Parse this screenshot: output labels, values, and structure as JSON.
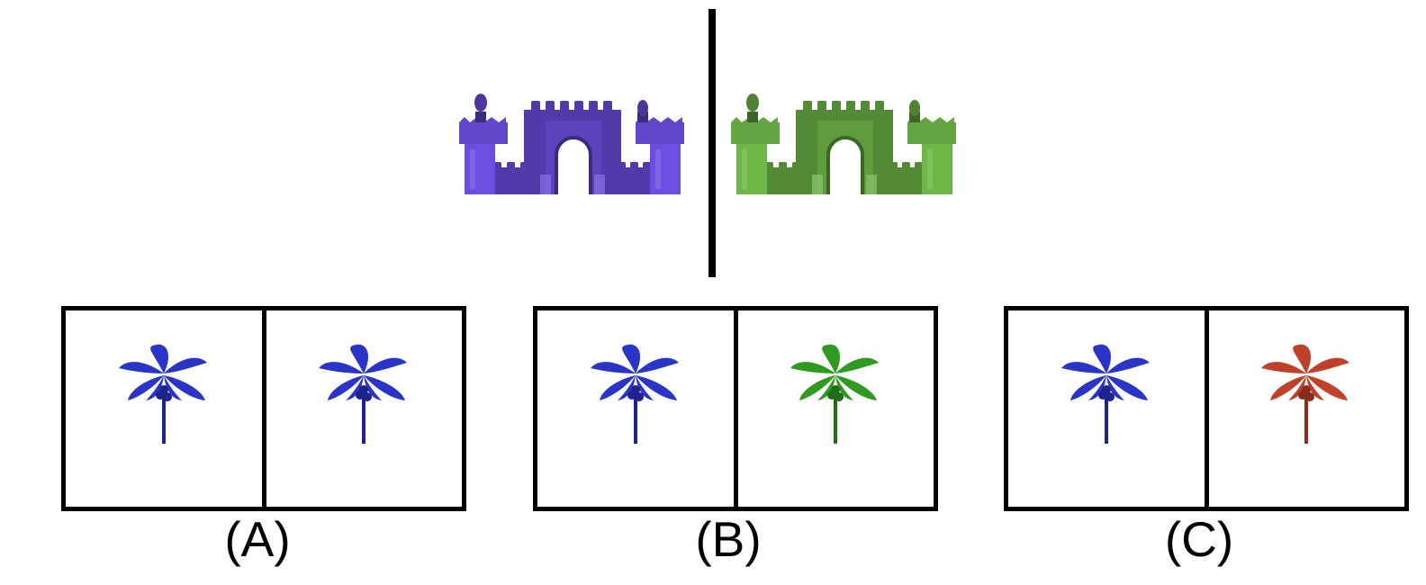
{
  "question": {
    "reference_left_color": "#6b4fe0",
    "reference_right_color": "#6fb848",
    "reference_object": "toy-castle",
    "options": [
      {
        "label": "(A)",
        "object": "palm-tree",
        "left_color": "#2a35c8",
        "right_color": "#2a35c8"
      },
      {
        "label": "(B)",
        "object": "palm-tree",
        "left_color": "#2a35c8",
        "right_color": "#2f9a22"
      },
      {
        "label": "(C)",
        "object": "palm-tree",
        "left_color": "#2a35c8",
        "right_color": "#c0402a"
      }
    ]
  }
}
